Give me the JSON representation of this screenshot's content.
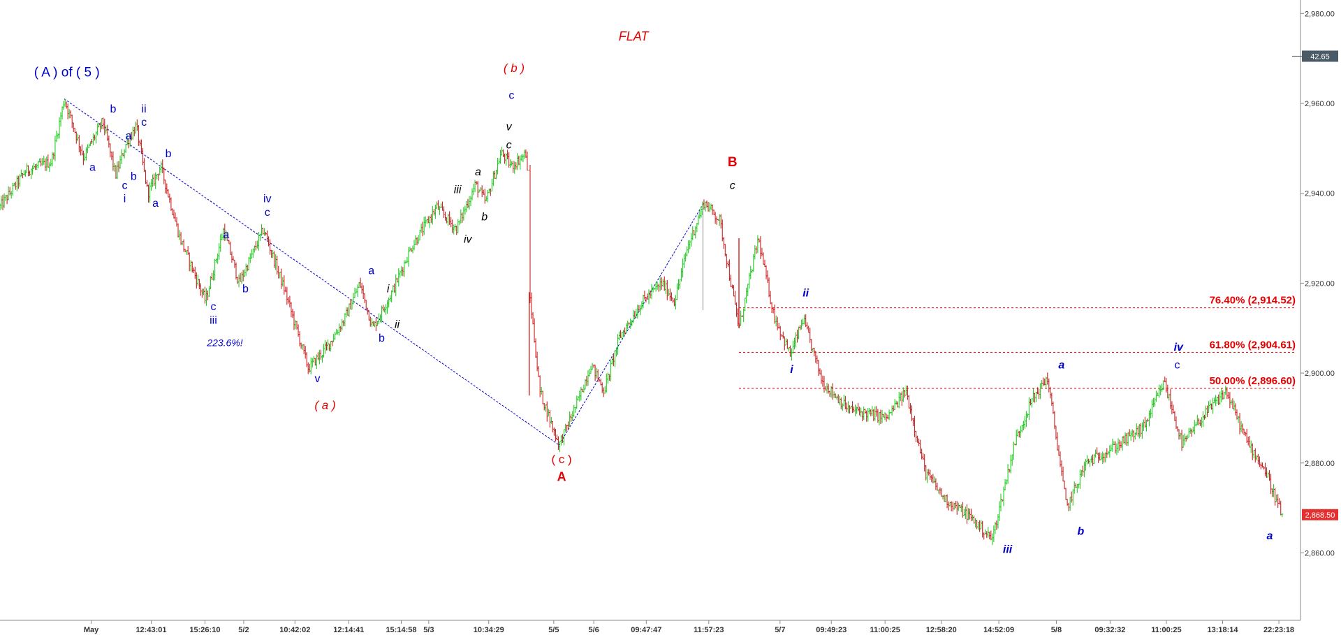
{
  "chart_data": {
    "type": "candlestick",
    "title": "FLAT",
    "ylim": [
      2845,
      2983
    ],
    "y_ticks": [
      "2,980.00",
      "2,960.00",
      "2,940.00",
      "2,920.00",
      "2,900.00",
      "2,880.00",
      "2,860.00"
    ],
    "y_tick_values": [
      2980,
      2960,
      2940,
      2920,
      2900,
      2880,
      2860
    ],
    "x_ticks": [
      "May",
      "12:43:01",
      "15:26:10",
      "5/2",
      "10:42:02",
      "12:14:41",
      "15:14:58",
      "5/3",
      "10:34:29",
      "5/5",
      "5/6",
      "09:47:47",
      "11:57:23",
      "5/7",
      "09:49:23",
      "11:00:25",
      "12:58:20",
      "14:52:09",
      "5/8",
      "09:32:32",
      "11:00:25",
      "13:18:14",
      "22:23:18"
    ],
    "x_tick_pos": [
      0.045,
      0.093,
      0.136,
      0.167,
      0.208,
      0.251,
      0.293,
      0.315,
      0.363,
      0.415,
      0.447,
      0.489,
      0.539,
      0.596,
      0.637,
      0.68,
      0.725,
      0.771,
      0.817,
      0.86,
      0.905,
      0.95,
      0.995
    ],
    "price_path": [
      [
        0.0,
        2937
      ],
      [
        0.02,
        2945
      ],
      [
        0.04,
        2947
      ],
      [
        0.05,
        2961
      ],
      [
        0.065,
        2948
      ],
      [
        0.08,
        2956
      ],
      [
        0.09,
        2944
      ],
      [
        0.098,
        2951
      ],
      [
        0.106,
        2955
      ],
      [
        0.115,
        2940
      ],
      [
        0.125,
        2946
      ],
      [
        0.14,
        2930
      ],
      [
        0.16,
        2916
      ],
      [
        0.174,
        2932
      ],
      [
        0.186,
        2920
      ],
      [
        0.205,
        2932
      ],
      [
        0.222,
        2918
      ],
      [
        0.24,
        2901
      ],
      [
        0.255,
        2906
      ],
      [
        0.268,
        2912
      ],
      [
        0.28,
        2920
      ],
      [
        0.29,
        2910
      ],
      [
        0.305,
        2918
      ],
      [
        0.32,
        2928
      ],
      [
        0.34,
        2937
      ],
      [
        0.355,
        2932
      ],
      [
        0.37,
        2942
      ],
      [
        0.378,
        2938
      ],
      [
        0.39,
        2949
      ],
      [
        0.398,
        2946
      ],
      [
        0.41,
        2949
      ],
      [
        0.412,
        2918
      ],
      [
        0.42,
        2896
      ],
      [
        0.435,
        2884
      ],
      [
        0.45,
        2894
      ],
      [
        0.46,
        2902
      ],
      [
        0.47,
        2896
      ],
      [
        0.482,
        2908
      ],
      [
        0.5,
        2916
      ],
      [
        0.515,
        2920
      ],
      [
        0.525,
        2916
      ],
      [
        0.535,
        2928
      ],
      [
        0.548,
        2938
      ],
      [
        0.56,
        2934
      ],
      [
        0.575,
        2910
      ],
      [
        0.59,
        2930
      ],
      [
        0.602,
        2913
      ],
      [
        0.615,
        2904
      ],
      [
        0.625,
        2912
      ],
      [
        0.64,
        2898
      ],
      [
        0.66,
        2892
      ],
      [
        0.69,
        2890
      ],
      [
        0.705,
        2896
      ],
      [
        0.72,
        2878
      ],
      [
        0.735,
        2872
      ],
      [
        0.755,
        2868
      ],
      [
        0.772,
        2863
      ],
      [
        0.79,
        2885
      ],
      [
        0.803,
        2894
      ],
      [
        0.815,
        2899
      ],
      [
        0.83,
        2870
      ],
      [
        0.845,
        2880
      ],
      [
        0.87,
        2884
      ],
      [
        0.89,
        2888
      ],
      [
        0.906,
        2898
      ],
      [
        0.92,
        2884
      ],
      [
        0.935,
        2890
      ],
      [
        0.954,
        2896
      ],
      [
        0.97,
        2885
      ],
      [
        0.985,
        2878
      ],
      [
        0.998,
        2868
      ]
    ],
    "fib_levels": [
      {
        "label": "76.40% (2,914.52)",
        "value": 2914.52
      },
      {
        "label": "61.80% (2,904.61)",
        "value": 2904.61
      },
      {
        "label": "50.00% (2,896.60)",
        "value": 2896.6
      }
    ],
    "trend_lines": [
      [
        [
          0.05,
          2961
        ],
        [
          0.435,
          2884
        ]
      ],
      [
        [
          0.435,
          2884
        ],
        [
          0.548,
          2938
        ]
      ]
    ],
    "annotations": [
      {
        "text": "FLAT",
        "x": 0.493,
        "y": 2974,
        "color": "#e60000",
        "size": 18,
        "italic": true
      },
      {
        "text": "( A ) of ( 5 )",
        "x": 0.052,
        "y": 2966,
        "color": "#0000cc",
        "size": 19
      },
      {
        "text": "b",
        "x": 0.088,
        "y": 2958,
        "color": "#0000cc",
        "size": 16
      },
      {
        "text": "ii",
        "x": 0.112,
        "y": 2958,
        "color": "#0000cc",
        "size": 16
      },
      {
        "text": "c",
        "x": 0.112,
        "y": 2955,
        "color": "#0000cc",
        "size": 16
      },
      {
        "text": "a",
        "x": 0.1,
        "y": 2952,
        "color": "#0000cc",
        "size": 16
      },
      {
        "text": "b",
        "x": 0.131,
        "y": 2948,
        "color": "#0000cc",
        "size": 16
      },
      {
        "text": "a",
        "x": 0.072,
        "y": 2945,
        "color": "#0000cc",
        "size": 16
      },
      {
        "text": "b",
        "x": 0.104,
        "y": 2943,
        "color": "#0000cc",
        "size": 16
      },
      {
        "text": "c",
        "x": 0.097,
        "y": 2941,
        "color": "#0000cc",
        "size": 16
      },
      {
        "text": "i",
        "x": 0.097,
        "y": 2938,
        "color": "#0000cc",
        "size": 16
      },
      {
        "text": "a",
        "x": 0.121,
        "y": 2937,
        "color": "#0000cc",
        "size": 16
      },
      {
        "text": "iv",
        "x": 0.208,
        "y": 2938,
        "color": "#0000cc",
        "size": 16
      },
      {
        "text": "c",
        "x": 0.208,
        "y": 2935,
        "color": "#0000cc",
        "size": 16
      },
      {
        "text": "a",
        "x": 0.176,
        "y": 2930,
        "color": "#0000cc",
        "size": 16
      },
      {
        "text": "b",
        "x": 0.191,
        "y": 2918,
        "color": "#0000cc",
        "size": 16
      },
      {
        "text": "c",
        "x": 0.166,
        "y": 2914,
        "color": "#0000cc",
        "size": 16
      },
      {
        "text": "iii",
        "x": 0.166,
        "y": 2911,
        "color": "#0000cc",
        "size": 16
      },
      {
        "text": "223.6%!",
        "x": 0.175,
        "y": 2906,
        "color": "#0000cc",
        "size": 14,
        "italic": true
      },
      {
        "text": "v",
        "x": 0.247,
        "y": 2898,
        "color": "#0000cc",
        "size": 16
      },
      {
        "text": "( a )",
        "x": 0.253,
        "y": 2892,
        "color": "#e60000",
        "size": 17,
        "italic": true
      },
      {
        "text": "a",
        "x": 0.289,
        "y": 2922,
        "color": "#0000cc",
        "size": 16
      },
      {
        "text": "b",
        "x": 0.297,
        "y": 2907,
        "color": "#0000cc",
        "size": 16
      },
      {
        "text": "i",
        "x": 0.302,
        "y": 2918,
        "color": "#000000",
        "size": 16,
        "italic": true
      },
      {
        "text": "ii",
        "x": 0.309,
        "y": 2910,
        "color": "#000000",
        "size": 16,
        "italic": true
      },
      {
        "text": "iii",
        "x": 0.356,
        "y": 2940,
        "color": "#000000",
        "size": 16,
        "italic": true
      },
      {
        "text": "iv",
        "x": 0.364,
        "y": 2929,
        "color": "#000000",
        "size": 16,
        "italic": true
      },
      {
        "text": "a",
        "x": 0.372,
        "y": 2944,
        "color": "#000000",
        "size": 16,
        "italic": true
      },
      {
        "text": "b",
        "x": 0.377,
        "y": 2934,
        "color": "#000000",
        "size": 16,
        "italic": true
      },
      {
        "text": "( b )",
        "x": 0.4,
        "y": 2967,
        "color": "#e60000",
        "size": 17,
        "italic": true
      },
      {
        "text": "c",
        "x": 0.398,
        "y": 2961,
        "color": "#0000cc",
        "size": 16
      },
      {
        "text": "v",
        "x": 0.396,
        "y": 2954,
        "color": "#000000",
        "size": 16,
        "italic": true
      },
      {
        "text": "c",
        "x": 0.396,
        "y": 2950,
        "color": "#000000",
        "size": 16,
        "italic": true
      },
      {
        "text": "( c )",
        "x": 0.437,
        "y": 2880,
        "color": "#e60000",
        "size": 17
      },
      {
        "text": "A",
        "x": 0.437,
        "y": 2876,
        "color": "#e60000",
        "size": 18,
        "bold": true
      },
      {
        "text": "B",
        "x": 0.57,
        "y": 2946,
        "color": "#e60000",
        "size": 19,
        "bold": true
      },
      {
        "text": "c",
        "x": 0.57,
        "y": 2941,
        "color": "#000000",
        "size": 16,
        "italic": true
      },
      {
        "text": "ii",
        "x": 0.627,
        "y": 2917,
        "color": "#0000cc",
        "size": 16,
        "italic": true,
        "bold": true
      },
      {
        "text": "i",
        "x": 0.616,
        "y": 2900,
        "color": "#0000cc",
        "size": 16,
        "italic": true,
        "bold": true
      },
      {
        "text": "a",
        "x": 0.826,
        "y": 2901,
        "color": "#0000cc",
        "size": 16,
        "italic": true,
        "bold": true
      },
      {
        "text": "iv",
        "x": 0.917,
        "y": 2905,
        "color": "#0000cc",
        "size": 16,
        "italic": true,
        "bold": true
      },
      {
        "text": "c",
        "x": 0.916,
        "y": 2901,
        "color": "#0000cc",
        "size": 16
      },
      {
        "text": "b",
        "x": 0.841,
        "y": 2864,
        "color": "#0000cc",
        "size": 16,
        "italic": true,
        "bold": true
      },
      {
        "text": "iii",
        "x": 0.784,
        "y": 2860,
        "color": "#0000cc",
        "size": 16,
        "italic": true,
        "bold": true
      },
      {
        "text": "a",
        "x": 0.988,
        "y": 2863,
        "color": "#0000cc",
        "size": 16,
        "italic": true,
        "bold": true
      }
    ],
    "last_price_label": "2,868.50",
    "last_price_value": 2868.5,
    "right_marker_label": "42.65",
    "right_marker_value": 2970.5,
    "colors": {
      "up": "#22cc22",
      "down": "#cc2222",
      "fib": "#e60000",
      "trend": "#0000cc",
      "axis": "#888888"
    }
  }
}
